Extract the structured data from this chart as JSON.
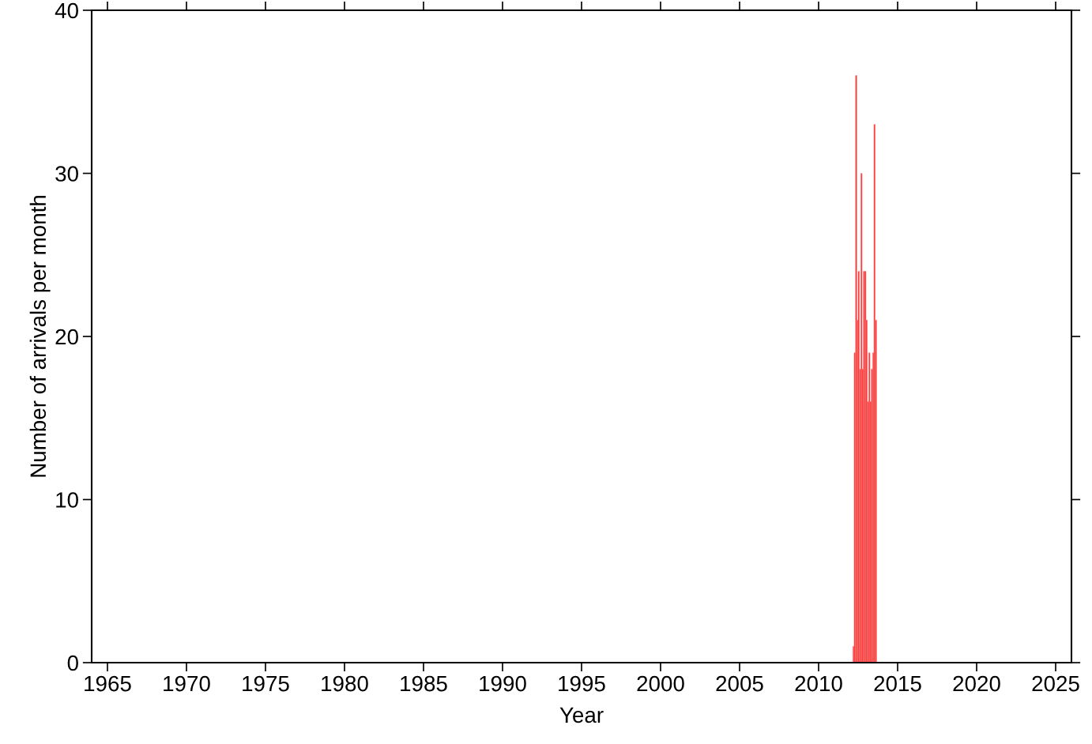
{
  "chart_data": {
    "type": "bar",
    "xlabel": "Year",
    "ylabel": "Number of arrivals per month",
    "x": [
      2012.21,
      2012.29,
      2012.38,
      2012.46,
      2012.54,
      2012.63,
      2012.71,
      2012.79,
      2012.88,
      2012.96,
      2013.04,
      2013.13,
      2013.21,
      2013.29,
      2013.38,
      2013.46,
      2013.54,
      2013.63
    ],
    "values": [
      1,
      19,
      36,
      21,
      24,
      18,
      30,
      18,
      24,
      24,
      21,
      16,
      19,
      16,
      18,
      19,
      33,
      21
    ],
    "color": "#ff2020",
    "xlim": [
      1964,
      2026
    ],
    "xticks": [
      1965,
      1970,
      1975,
      1980,
      1985,
      1990,
      1995,
      2000,
      2005,
      2010,
      2015,
      2020,
      2025
    ],
    "ylim": [
      0,
      40
    ],
    "yticks": [
      0,
      10,
      20,
      30,
      40
    ],
    "grid": false,
    "legend": false
  }
}
